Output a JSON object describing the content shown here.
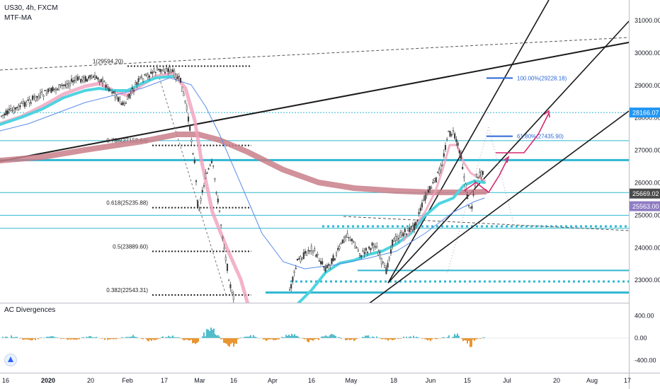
{
  "header": {
    "symbol_line": "US30, 4h, FXCM",
    "indicator": "MTF-MA"
  },
  "lower_pane": {
    "title": "AC Divergences"
  },
  "colors": {
    "cyan": "#4dd4e0",
    "pink": "#f0a0bd",
    "maroon": "#c97f8a",
    "blue_line": "#5b8de8",
    "hline": "#2fb7d1",
    "candle_up": "#3a3a3a",
    "osc_pos": "#3fb6c4",
    "osc_neg": "#e68a1c",
    "price_label_blue": "#2196f3",
    "price_label_dark": "#4a4a4a",
    "price_label_purple": "#8e7cc3",
    "arrow": "#d6286e"
  },
  "chart_data": {
    "type": "candlestick",
    "price_axis": {
      "ticks": [
        "31000.00",
        "30000.00",
        "29000.00",
        "28000.00",
        "27000.00",
        "26000.00",
        "25000.00",
        "24000.00",
        "23000.00"
      ],
      "ylim": [
        22380,
        31560
      ]
    },
    "time_axis": {
      "ticks": [
        "16",
        "2020",
        "20",
        "Feb",
        "17",
        "Mar",
        "16",
        "Apr",
        "16",
        "May",
        "18",
        "Jun",
        "15",
        "Jul",
        "20",
        "Aug",
        "17"
      ]
    },
    "price_labels": [
      {
        "text": "28166.07",
        "value": 28166.07,
        "style": "blue"
      },
      {
        "text": "25669.02",
        "value": 25669.02,
        "style": "dark"
      },
      {
        "text": "25563.00",
        "value": 25563.0,
        "style": "purple"
      }
    ],
    "fib_labels": [
      {
        "text": "1(29594.20)",
        "value": 29594.2
      },
      {
        "text": "0.786(27152.63)",
        "value": 27152.63
      },
      {
        "text": "0.618(25235.88)",
        "value": 25235.88
      },
      {
        "text": "0.5(23889.60)",
        "value": 23889.6
      },
      {
        "text": "0.382(22543.31)",
        "value": 22543.31
      }
    ],
    "projection_labels": [
      {
        "text": "100.00%(29228.18)",
        "value": 29228.18
      },
      {
        "text": "61.80%(27435.90)",
        "value": 27435.9
      }
    ],
    "horizontal_levels": [
      28166.07,
      27300,
      26700,
      25700,
      25000,
      24600,
      23300,
      22620
    ],
    "oscillator": {
      "ticks": [
        "400.00",
        "0.00",
        "-400.00"
      ],
      "ylim": [
        -480,
        560
      ]
    }
  }
}
